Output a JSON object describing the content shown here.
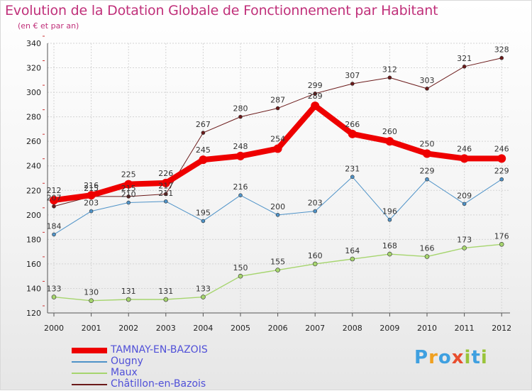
{
  "title": "Evolution de la Dotation Globale de Fonctionnement par Habitant",
  "subtitle": "(en € et par an)",
  "logo": {
    "text": "Proxiti",
    "colors": [
      "#3fa0e0",
      "#f0a020",
      "#3fa0e0",
      "#e84e2e",
      "#9ac43a",
      "#3fa0e0",
      "#9ac43a"
    ]
  },
  "chart_data": {
    "type": "line",
    "x": [
      "2000",
      "2001",
      "2002",
      "2003",
      "2004",
      "2005",
      "2006",
      "2007",
      "2008",
      "2009",
      "2010",
      "2011",
      "2012"
    ],
    "ylim": [
      120,
      340
    ],
    "yticks": [
      120,
      140,
      160,
      180,
      200,
      220,
      240,
      260,
      280,
      300,
      320,
      340
    ],
    "grid": true,
    "legend_position": "bottom-left",
    "series": [
      {
        "name": "Châtillon-en-Bazois",
        "color": "#6b1a1a",
        "width": 1,
        "marker": 2.5,
        "values": [
          207,
          215,
          215,
          217,
          267,
          280,
          287,
          299,
          307,
          312,
          303,
          321,
          328
        ],
        "labels": [
          "207",
          "215",
          "215",
          "217",
          "267",
          "280",
          "287",
          "299",
          "307",
          "312",
          "303",
          "321",
          "328"
        ]
      },
      {
        "name": "Ougny",
        "color": "#4f93c8",
        "width": 1,
        "marker": 2.5,
        "values": [
          184,
          203,
          210,
          211,
          195,
          216,
          200,
          203,
          231,
          196,
          229,
          209,
          229
        ],
        "labels": [
          "184",
          "203",
          "210",
          "211",
          "195",
          "216",
          "200",
          "203",
          "231",
          "196",
          "229",
          "209",
          "229"
        ]
      },
      {
        "name": "Maux",
        "color": "#a6d56e",
        "width": 1.4,
        "marker": 3,
        "values": [
          133,
          130,
          131,
          131,
          133,
          150,
          155,
          160,
          164,
          168,
          166,
          173,
          176
        ],
        "labels": [
          "133",
          "130",
          "131",
          "131",
          "133",
          "150",
          "155",
          "160",
          "164",
          "168",
          "166",
          "173",
          "176"
        ]
      },
      {
        "name": "TAMNAY-EN-BAZOIS",
        "color": "#ee0000",
        "width": 8,
        "marker": 6,
        "values": [
          212,
          216,
          225,
          226,
          245,
          248,
          254,
          289,
          266,
          260,
          250,
          246,
          246
        ],
        "labels": [
          "212",
          "216",
          "225",
          "226",
          "245",
          "248",
          "254",
          "289",
          "266",
          "260",
          "250",
          "246",
          "246"
        ]
      }
    ]
  },
  "legend": [
    {
      "label": "TAMNAY-EN-BAZOIS",
      "color": "#ee0000",
      "width": 8,
      "text_color": "#5050d8"
    },
    {
      "label": "Ougny",
      "color": "#4f93c8",
      "width": 2,
      "text_color": "#5050d8"
    },
    {
      "label": "Maux",
      "color": "#a6d56e",
      "width": 2,
      "text_color": "#5050d8"
    },
    {
      "label": "Châtillon-en-Bazois",
      "color": "#6b1a1a",
      "width": 2,
      "text_color": "#5050d8"
    }
  ]
}
